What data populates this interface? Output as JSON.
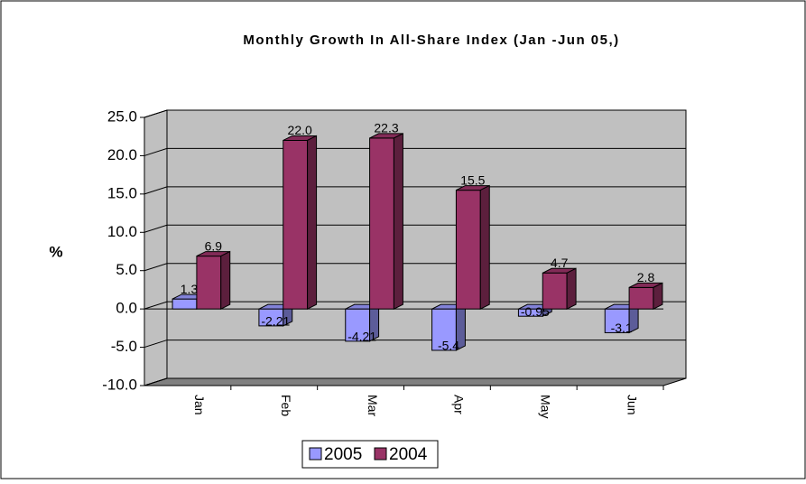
{
  "chart_data": {
    "type": "bar3d",
    "title": "Monthly Growth In All-Share Index (Jan -Jun 05,)",
    "y_label": "%",
    "categories": [
      "Jan",
      "Feb",
      "Mar",
      "Apr",
      "May",
      "Jun"
    ],
    "series": [
      {
        "name": "2005",
        "color": "#9999ff",
        "values": [
          1.3,
          -2.21,
          -4.21,
          -5.4,
          -0.95,
          -3.1
        ]
      },
      {
        "name": "2004",
        "color": "#993366",
        "values": [
          6.9,
          22.0,
          22.3,
          15.5,
          4.7,
          2.8
        ],
        "value_labels": [
          "6.9",
          "22.0",
          "22.3",
          "15.5",
          "4.7",
          "2.8"
        ]
      }
    ],
    "ylim": [
      -10,
      25
    ],
    "yticks": [
      {
        "value": -10,
        "label": "-10.0"
      },
      {
        "value": -5,
        "label": "-5.0"
      },
      {
        "value": 0,
        "label": "0.0"
      },
      {
        "value": 5,
        "label": "5.0"
      },
      {
        "value": 10,
        "label": "10.0"
      },
      {
        "value": 15,
        "label": "15.0"
      },
      {
        "value": 20,
        "label": "20.0"
      },
      {
        "value": 25,
        "label": "25.0"
      }
    ],
    "grid": true,
    "legend": "bottom"
  }
}
